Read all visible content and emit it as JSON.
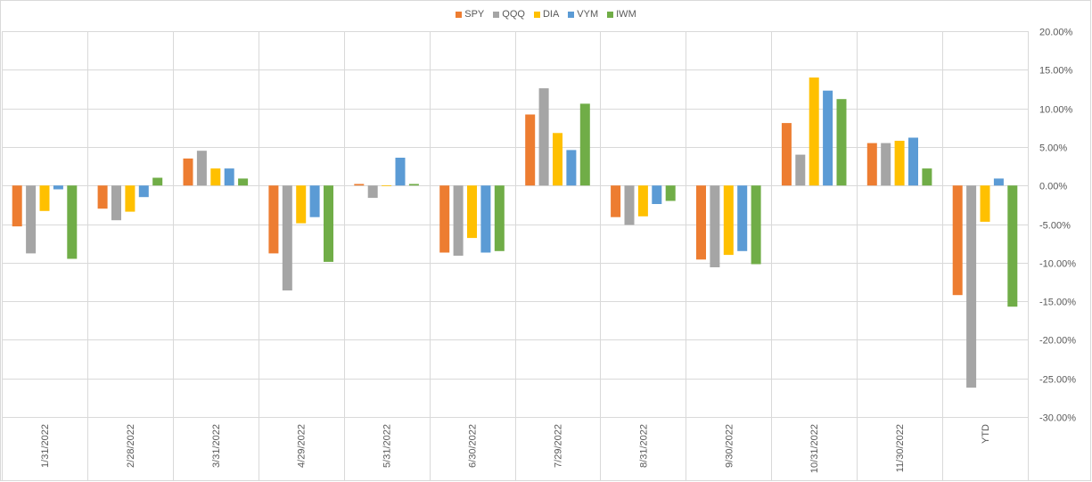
{
  "chart_data": {
    "type": "bar",
    "title": "",
    "xlabel": "",
    "ylabel": "",
    "ylim": [
      -0.3,
      0.2
    ],
    "y_ticks": [
      "20.00%",
      "15.00%",
      "10.00%",
      "5.00%",
      "0.00%",
      "-5.00%",
      "-10.00%",
      "-15.00%",
      "-20.00%",
      "-25.00%",
      "-30.00%"
    ],
    "y_tick_values": [
      0.2,
      0.15,
      0.1,
      0.05,
      0.0,
      -0.05,
      -0.1,
      -0.15,
      -0.2,
      -0.25,
      -0.3
    ],
    "y_axis_position": "right",
    "grid": true,
    "legend_position": "top-center",
    "categories": [
      "1/31/2022",
      "2/28/2022",
      "3/31/2022",
      "4/29/2022",
      "5/31/2022",
      "6/30/2022",
      "7/29/2022",
      "8/31/2022",
      "9/30/2022",
      "10/31/2022",
      "11/30/2022",
      "YTD"
    ],
    "series": [
      {
        "name": "SPY",
        "color": "#ED7D31",
        "values": [
          -0.053,
          -0.03,
          0.035,
          -0.088,
          0.002,
          -0.087,
          0.092,
          -0.041,
          -0.096,
          0.081,
          0.055,
          -0.142
        ]
      },
      {
        "name": "QQQ",
        "color": "#A5A5A5",
        "values": [
          -0.088,
          -0.045,
          0.045,
          -0.136,
          -0.016,
          -0.091,
          0.126,
          -0.051,
          -0.106,
          0.04,
          0.055,
          -0.262
        ]
      },
      {
        "name": "DIA",
        "color": "#FFC000",
        "values": [
          -0.033,
          -0.034,
          0.022,
          -0.049,
          0.0,
          -0.068,
          0.068,
          -0.04,
          -0.09,
          0.14,
          0.058,
          -0.047
        ]
      },
      {
        "name": "VYM",
        "color": "#5B9BD5",
        "values": [
          -0.005,
          -0.015,
          0.022,
          -0.041,
          0.036,
          -0.087,
          0.046,
          -0.024,
          -0.085,
          0.123,
          0.062,
          0.009
        ]
      },
      {
        "name": "IWM",
        "color": "#70AD47",
        "values": [
          -0.095,
          0.01,
          0.009,
          -0.099,
          0.002,
          -0.085,
          0.106,
          -0.02,
          -0.102,
          0.112,
          0.022,
          -0.157
        ]
      }
    ]
  }
}
